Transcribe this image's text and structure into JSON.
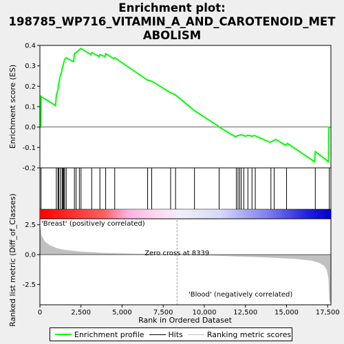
{
  "title_lines": [
    "Enrichment plot:",
    "198785_WP716_VITAMIN_A_AND_CAROTENOID_MET",
    "ABOLISM"
  ],
  "colors": {
    "profile": "#00ff00",
    "hits": "#000000",
    "metric_fill": "#c0c0c0",
    "zero_line": "#000000",
    "positive_label": "#ff0000",
    "negative_label": "#0000ff",
    "background": "#efefef"
  },
  "chart_data": [
    {
      "type": "line",
      "name": "enrichment_profile",
      "ylabel": "Enrichment score (ES)",
      "xlim": [
        0,
        17700
      ],
      "ylim": [
        -0.2,
        0.4
      ],
      "yticks": [
        "-0.2",
        "-0.1",
        "0.0",
        "0.1",
        "0.2",
        "0.3",
        "0.4"
      ],
      "ytick_values": [
        -0.2,
        -0.1,
        0.0,
        0.1,
        0.2,
        0.3,
        0.4
      ],
      "grid": false,
      "series": [
        {
          "name": "Enrichment profile",
          "x": [
            0,
            60,
            70,
            950,
            1000,
            1100,
            1150,
            1250,
            1300,
            1350,
            1400,
            1450,
            1500,
            1600,
            1700,
            2050,
            2100,
            2200,
            2300,
            2400,
            2500,
            3100,
            3150,
            3600,
            3650,
            3950,
            4000,
            4500,
            4550,
            6500,
            6550,
            6800,
            7900,
            8000,
            8200,
            9400,
            10850,
            10900,
            11900,
            11950,
            12050,
            12150,
            12250,
            12350,
            12400,
            12500,
            12650,
            12750,
            12900,
            13050,
            13150,
            14000,
            14100,
            14250,
            14350,
            14950,
            15050,
            16700,
            16750,
            17550,
            17580,
            17700
          ],
          "y": [
            0.0,
            0.0,
            0.15,
            0.105,
            0.155,
            0.185,
            0.215,
            0.255,
            0.26,
            0.285,
            0.3,
            0.315,
            0.33,
            0.34,
            0.335,
            0.32,
            0.36,
            0.365,
            0.37,
            0.38,
            0.385,
            0.355,
            0.365,
            0.345,
            0.355,
            0.345,
            0.36,
            0.335,
            0.34,
            0.232,
            0.23,
            0.225,
            0.17,
            0.165,
            0.16,
            0.08,
            0.005,
            0.0,
            -0.048,
            -0.045,
            -0.042,
            -0.04,
            -0.038,
            -0.04,
            -0.042,
            -0.045,
            -0.04,
            -0.042,
            -0.045,
            -0.042,
            -0.045,
            -0.075,
            -0.07,
            -0.065,
            -0.06,
            -0.09,
            -0.08,
            -0.17,
            -0.12,
            -0.17,
            0.0,
            0.0
          ]
        }
      ]
    },
    {
      "type": "scatter",
      "name": "hits",
      "xlim": [
        0,
        17700
      ],
      "x": [
        70,
        1000,
        1100,
        1150,
        1250,
        1350,
        1400,
        1450,
        1500,
        1600,
        2100,
        2200,
        2400,
        2500,
        3150,
        3650,
        4000,
        4550,
        6550,
        6800,
        7950,
        8250,
        9400,
        10900,
        11950,
        12050,
        12150,
        12250,
        12400,
        12650,
        12900,
        13100,
        14050,
        14250,
        15000,
        16750,
        17600
      ]
    },
    {
      "type": "area",
      "name": "ranked_list_metric",
      "xlabel": "Rank in Ordered Dataset",
      "ylabel": "Ranked list metric (Diff_of_Classes)",
      "xlim": [
        0,
        17700
      ],
      "ylim": [
        -4.2,
        3.0
      ],
      "xticks": [
        "0",
        "2,500",
        "5,000",
        "7,500",
        "10,000",
        "12,500",
        "15,000",
        "17,500"
      ],
      "xtick_values": [
        0,
        2500,
        5000,
        7500,
        10000,
        12500,
        15000,
        17500
      ],
      "yticks": [
        "-2.5",
        "0.0",
        "2.5"
      ],
      "ytick_values": [
        -2.5,
        0.0,
        2.5
      ],
      "x": [
        0,
        100,
        300,
        600,
        1000,
        1500,
        2500,
        4000,
        6000,
        8339,
        10000,
        12000,
        14000,
        15500,
        16500,
        17000,
        17300,
        17450,
        17550,
        17600,
        17650,
        17700
      ],
      "y": [
        2.6,
        1.6,
        1.1,
        0.8,
        0.55,
        0.4,
        0.25,
        0.14,
        0.06,
        0.0,
        -0.07,
        -0.15,
        -0.25,
        -0.35,
        -0.5,
        -0.7,
        -0.95,
        -1.3,
        -2.0,
        -3.8,
        -4.0,
        -4.0
      ],
      "zero_cross_label": "Zero cross at 8339",
      "zero_cross": 8339,
      "positive_label": "'Breast' (positively correlated)",
      "negative_label": "'Blood' (negatively correlated)"
    }
  ],
  "legend": {
    "items": [
      "Enrichment profile",
      "Hits",
      "Ranking metric scores"
    ]
  }
}
